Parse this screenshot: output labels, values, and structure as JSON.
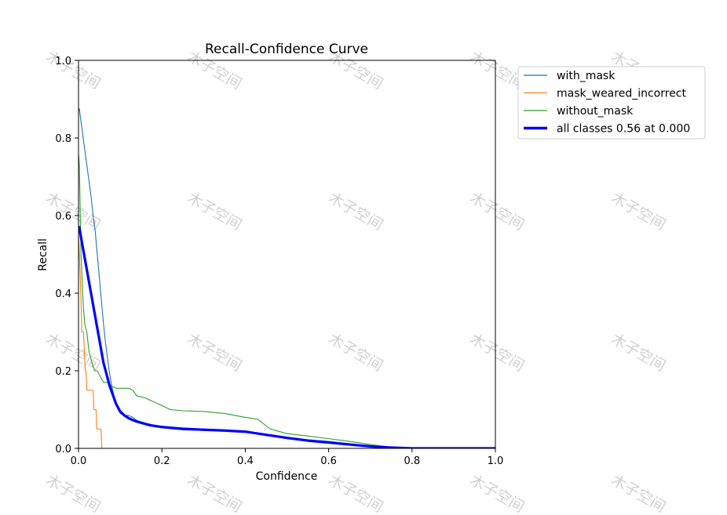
{
  "watermark": "木子空间",
  "chart_data": {
    "type": "line",
    "title": "Recall-Confidence Curve",
    "xlabel": "Confidence",
    "ylabel": "Recall",
    "xlim": [
      0,
      1
    ],
    "ylim": [
      0,
      1
    ],
    "xticks": [
      "0.0",
      "0.2",
      "0.4",
      "0.6",
      "0.8",
      "1.0"
    ],
    "yticks": [
      "0.0",
      "0.2",
      "0.4",
      "0.6",
      "0.8",
      "1.0"
    ],
    "grid": false,
    "legend": "outside-top-right",
    "series": [
      {
        "name": "with_mask",
        "color": "#1f77b4",
        "line_width": "thin",
        "x": [
          0.0,
          0.002,
          0.005,
          0.01,
          0.015,
          0.02,
          0.025,
          0.03,
          0.035,
          0.04,
          0.045,
          0.05,
          0.055,
          0.06,
          0.065,
          0.07,
          0.075,
          0.08,
          0.085,
          0.09,
          0.095,
          0.1,
          0.11,
          0.12,
          0.13,
          0.14,
          0.15,
          0.16,
          0.18,
          0.2,
          0.25,
          0.3,
          0.35,
          0.4,
          0.43,
          0.45,
          0.5,
          0.55,
          0.6,
          0.65,
          0.7,
          0.75,
          0.8,
          0.9,
          1.0
        ],
        "y": [
          0.87,
          0.875,
          0.85,
          0.81,
          0.77,
          0.73,
          0.69,
          0.65,
          0.6,
          0.56,
          0.5,
          0.44,
          0.38,
          0.32,
          0.27,
          0.23,
          0.19,
          0.16,
          0.135,
          0.115,
          0.1,
          0.09,
          0.085,
          0.085,
          0.08,
          0.072,
          0.068,
          0.065,
          0.06,
          0.057,
          0.053,
          0.05,
          0.047,
          0.045,
          0.04,
          0.035,
          0.027,
          0.022,
          0.018,
          0.012,
          0.006,
          0.002,
          0.0,
          0.0,
          0.0
        ]
      },
      {
        "name": "mask_weared_incorrect",
        "color": "#ff7f0e",
        "line_width": "thin",
        "x": [
          0.0,
          0.002,
          0.004,
          0.006,
          0.008,
          0.01,
          0.012,
          0.014,
          0.016,
          0.018,
          0.02,
          0.022,
          0.03,
          0.035,
          0.037,
          0.04,
          0.042,
          0.044,
          0.046,
          0.05,
          0.054,
          0.056,
          0.058,
          0.06,
          0.1,
          1.0
        ],
        "y": [
          0.55,
          0.5,
          0.45,
          0.38,
          0.3,
          0.3,
          0.3,
          0.25,
          0.2,
          0.2,
          0.15,
          0.15,
          0.15,
          0.15,
          0.1,
          0.1,
          0.1,
          0.05,
          0.05,
          0.05,
          0.05,
          0.0,
          0.0,
          0.0,
          0.0,
          0.0
        ]
      },
      {
        "name": "without_mask",
        "color": "#2ca02c",
        "line_width": "thin",
        "x": [
          0.0,
          0.002,
          0.004,
          0.006,
          0.008,
          0.01,
          0.012,
          0.015,
          0.02,
          0.025,
          0.03,
          0.035,
          0.04,
          0.045,
          0.05,
          0.055,
          0.06,
          0.065,
          0.07,
          0.08,
          0.09,
          0.1,
          0.11,
          0.12,
          0.13,
          0.14,
          0.16,
          0.18,
          0.2,
          0.22,
          0.25,
          0.3,
          0.35,
          0.4,
          0.43,
          0.46,
          0.5,
          0.55,
          0.6,
          0.65,
          0.7,
          0.75,
          0.8,
          0.9,
          1.0
        ],
        "y": [
          0.76,
          0.73,
          0.62,
          0.5,
          0.45,
          0.4,
          0.36,
          0.32,
          0.3,
          0.25,
          0.23,
          0.21,
          0.2,
          0.2,
          0.19,
          0.18,
          0.17,
          0.17,
          0.17,
          0.16,
          0.155,
          0.155,
          0.155,
          0.155,
          0.15,
          0.135,
          0.13,
          0.12,
          0.11,
          0.1,
          0.097,
          0.095,
          0.09,
          0.08,
          0.075,
          0.05,
          0.038,
          0.032,
          0.025,
          0.018,
          0.01,
          0.003,
          0.0,
          0.0,
          0.0
        ]
      },
      {
        "name": "all classes 0.56 at 0.000",
        "color": "#0000ff",
        "line_width": "thick",
        "x": [
          0.0,
          0.002,
          0.005,
          0.01,
          0.015,
          0.02,
          0.025,
          0.03,
          0.035,
          0.04,
          0.045,
          0.05,
          0.055,
          0.06,
          0.065,
          0.07,
          0.075,
          0.08,
          0.085,
          0.09,
          0.095,
          0.1,
          0.11,
          0.12,
          0.13,
          0.14,
          0.15,
          0.17,
          0.2,
          0.25,
          0.3,
          0.35,
          0.4,
          0.45,
          0.5,
          0.55,
          0.6,
          0.65,
          0.7,
          0.75,
          0.8,
          0.9,
          1.0
        ],
        "y": [
          0.56,
          0.57,
          0.55,
          0.52,
          0.49,
          0.46,
          0.43,
          0.4,
          0.37,
          0.34,
          0.31,
          0.28,
          0.25,
          0.22,
          0.2,
          0.18,
          0.16,
          0.145,
          0.13,
          0.115,
          0.105,
          0.095,
          0.085,
          0.078,
          0.073,
          0.069,
          0.066,
          0.06,
          0.055,
          0.05,
          0.048,
          0.046,
          0.043,
          0.035,
          0.027,
          0.02,
          0.015,
          0.01,
          0.005,
          0.002,
          0.0,
          0.0,
          0.0
        ]
      }
    ]
  }
}
